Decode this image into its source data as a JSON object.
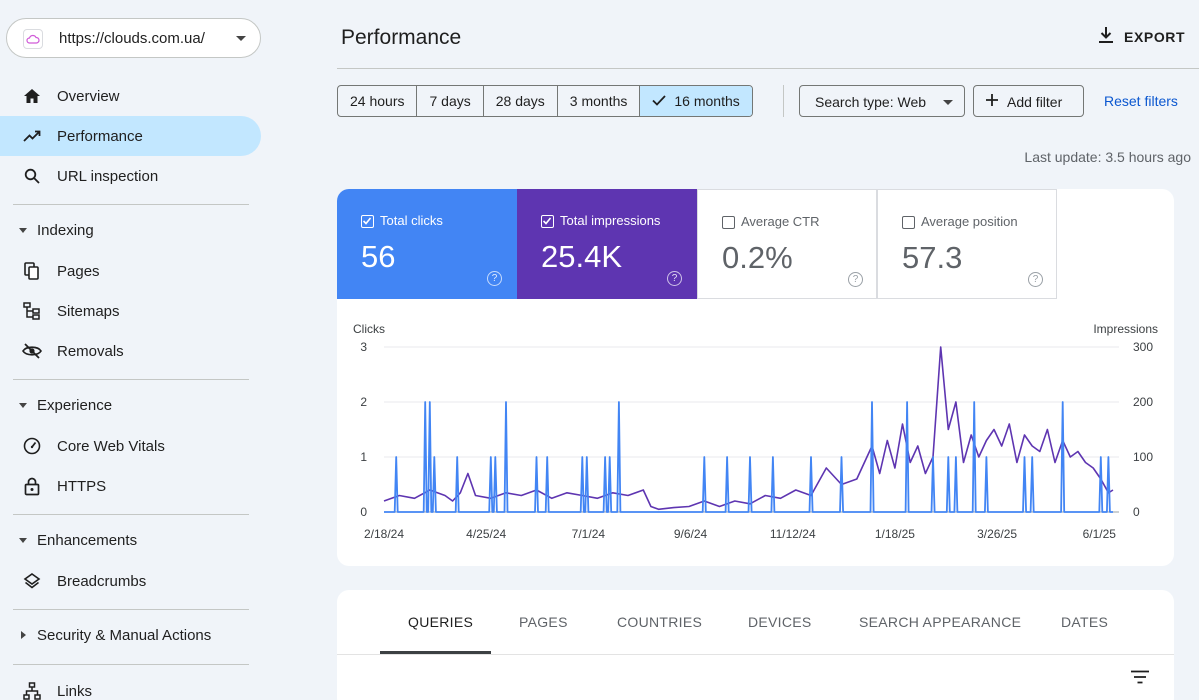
{
  "property": {
    "url": "https://clouds.com.ua/"
  },
  "sidebar": {
    "overview": "Overview",
    "performance": "Performance",
    "url_inspection": "URL inspection",
    "indexing": {
      "label": "Indexing",
      "pages": "Pages",
      "sitemaps": "Sitemaps",
      "removals": "Removals"
    },
    "experience": {
      "label": "Experience",
      "cwv": "Core Web Vitals",
      "https": "HTTPS"
    },
    "enhancements": {
      "label": "Enhancements",
      "breadcrumbs": "Breadcrumbs"
    },
    "security": {
      "label": "Security & Manual Actions"
    },
    "links": "Links"
  },
  "header": {
    "title": "Performance",
    "export": "EXPORT"
  },
  "filters": {
    "ranges": [
      "24 hours",
      "7 days",
      "28 days",
      "3 months",
      "16 months"
    ],
    "selected_range": "16 months",
    "search_type": "Search type: Web",
    "add_filter": "Add filter",
    "reset": "Reset filters",
    "last_update": "Last update: 3.5 hours ago"
  },
  "metrics": {
    "clicks": {
      "label": "Total clicks",
      "value": "56",
      "checked": true,
      "color": "#4285f4"
    },
    "impressions": {
      "label": "Total impressions",
      "value": "25.4K",
      "checked": true,
      "color": "#5e35b1"
    },
    "ctr": {
      "label": "Average CTR",
      "value": "0.2%",
      "checked": false
    },
    "position": {
      "label": "Average position",
      "value": "57.3",
      "checked": false
    }
  },
  "chart_data": {
    "type": "line",
    "ylabel_left": "Clicks",
    "ylabel_right": "Impressions",
    "y_left_ticks": [
      "3",
      "2",
      "1",
      "0"
    ],
    "y_right_ticks": [
      "300",
      "200",
      "100",
      "0"
    ],
    "ylim_left": [
      0,
      3
    ],
    "ylim_right": [
      0,
      300
    ],
    "x_ticks": [
      "2/18/24",
      "4/25/24",
      "7/1/24",
      "9/6/24",
      "11/12/24",
      "1/18/25",
      "3/26/25",
      "6/1/25"
    ],
    "x_tick_day_offsets": [
      0,
      67,
      134,
      201,
      268,
      335,
      402,
      469
    ],
    "x_range_days": [
      0,
      478
    ],
    "series": [
      {
        "name": "Total impressions",
        "axis": "right",
        "color": "#5e35b1",
        "points": [
          [
            0,
            20
          ],
          [
            10,
            30
          ],
          [
            20,
            25
          ],
          [
            30,
            40
          ],
          [
            40,
            30
          ],
          [
            45,
            20
          ],
          [
            50,
            35
          ],
          [
            55,
            70
          ],
          [
            60,
            30
          ],
          [
            70,
            25
          ],
          [
            80,
            35
          ],
          [
            90,
            30
          ],
          [
            100,
            40
          ],
          [
            110,
            25
          ],
          [
            120,
            35
          ],
          [
            130,
            30
          ],
          [
            140,
            25
          ],
          [
            150,
            35
          ],
          [
            160,
            30
          ],
          [
            170,
            40
          ],
          [
            175,
            10
          ],
          [
            180,
            5
          ],
          [
            190,
            8
          ],
          [
            200,
            10
          ],
          [
            210,
            20
          ],
          [
            220,
            10
          ],
          [
            230,
            20
          ],
          [
            240,
            15
          ],
          [
            250,
            30
          ],
          [
            260,
            25
          ],
          [
            270,
            40
          ],
          [
            280,
            30
          ],
          [
            290,
            80
          ],
          [
            300,
            50
          ],
          [
            310,
            60
          ],
          [
            320,
            120
          ],
          [
            325,
            70
          ],
          [
            330,
            130
          ],
          [
            335,
            80
          ],
          [
            340,
            160
          ],
          [
            345,
            90
          ],
          [
            350,
            120
          ],
          [
            355,
            70
          ],
          [
            360,
            100
          ],
          [
            365,
            300
          ],
          [
            370,
            150
          ],
          [
            375,
            200
          ],
          [
            380,
            90
          ],
          [
            385,
            140
          ],
          [
            390,
            100
          ],
          [
            395,
            130
          ],
          [
            400,
            150
          ],
          [
            405,
            120
          ],
          [
            410,
            160
          ],
          [
            415,
            90
          ],
          [
            420,
            140
          ],
          [
            425,
            120
          ],
          [
            430,
            110
          ],
          [
            435,
            150
          ],
          [
            440,
            90
          ],
          [
            445,
            130
          ],
          [
            450,
            100
          ],
          [
            455,
            110
          ],
          [
            460,
            90
          ],
          [
            465,
            80
          ],
          [
            470,
            60
          ],
          [
            475,
            35
          ],
          [
            478,
            40
          ]
        ]
      },
      {
        "name": "Total clicks",
        "axis": "left",
        "color": "#4285f4",
        "spikes": [
          [
            8,
            1
          ],
          [
            27,
            2
          ],
          [
            30,
            2
          ],
          [
            33,
            1
          ],
          [
            48,
            1
          ],
          [
            70,
            1
          ],
          [
            73,
            1
          ],
          [
            80,
            2
          ],
          [
            100,
            1
          ],
          [
            107,
            1
          ],
          [
            130,
            1
          ],
          [
            133,
            1
          ],
          [
            145,
            1
          ],
          [
            148,
            1
          ],
          [
            154,
            2
          ],
          [
            210,
            1
          ],
          [
            225,
            1
          ],
          [
            240,
            1
          ],
          [
            255,
            1
          ],
          [
            280,
            1
          ],
          [
            300,
            1
          ],
          [
            320,
            2
          ],
          [
            343,
            2
          ],
          [
            360,
            1
          ],
          [
            370,
            1
          ],
          [
            375,
            1
          ],
          [
            387,
            2
          ],
          [
            395,
            1
          ],
          [
            420,
            1
          ],
          [
            425,
            1
          ],
          [
            445,
            2
          ],
          [
            470,
            1
          ],
          [
            475,
            1
          ]
        ]
      }
    ]
  },
  "tabs": [
    "QUERIES",
    "PAGES",
    "COUNTRIES",
    "DEVICES",
    "SEARCH APPEARANCE",
    "DATES"
  ]
}
